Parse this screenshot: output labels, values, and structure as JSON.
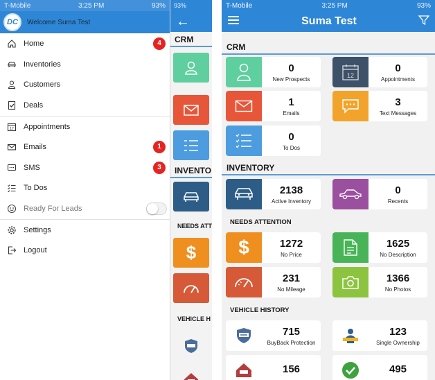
{
  "status_bar": {
    "carrier": "T-Mobile",
    "time": "3:25 PM",
    "battery": "93%"
  },
  "drawer": {
    "welcome": "Welcome Suma Test",
    "logo_text": "DC",
    "items": [
      {
        "label": "Home",
        "icon": "home-icon",
        "badge": "4"
      },
      {
        "label": "Inventories",
        "icon": "car-icon",
        "badge": ""
      },
      {
        "label": "Customers",
        "icon": "person-icon",
        "badge": ""
      },
      {
        "label": "Deals",
        "icon": "deals-icon",
        "badge": ""
      },
      {
        "label": "Appointments",
        "icon": "calendar-icon",
        "badge": ""
      },
      {
        "label": "Emails",
        "icon": "envelope-icon",
        "badge": "1"
      },
      {
        "label": "SMS",
        "icon": "chat-icon",
        "badge": "3"
      },
      {
        "label": "To Dos",
        "icon": "list-icon",
        "badge": ""
      },
      {
        "label": "Ready For Leads",
        "icon": "leads-icon",
        "badge": ""
      },
      {
        "label": "Settings",
        "icon": "gear-icon",
        "badge": ""
      },
      {
        "label": "Logout",
        "icon": "logout-icon",
        "badge": ""
      }
    ]
  },
  "mid": {
    "sections": [
      "CRM",
      "INVENTO",
      "NEEDS ATT",
      "VEHICLE H"
    ]
  },
  "dashboard": {
    "title": "Suma Test",
    "sections": {
      "crm": "CRM",
      "inventory": "INVENTORY",
      "needs_attention": "NEEDS ATTENTION",
      "vehicle_history": "VEHICLE HISTORY"
    },
    "crm_cards": [
      {
        "value": "0",
        "label": "New Prospects",
        "color": "#5fcf9f",
        "icon": "person-icon"
      },
      {
        "value": "0",
        "label": "Appointments",
        "color": "#3d5169",
        "icon": "calendar-icon"
      },
      {
        "value": "1",
        "label": "Emails",
        "color": "#e8563a",
        "icon": "envelope-icon"
      },
      {
        "value": "3",
        "label": "Text Messages",
        "color": "#f1a32b",
        "icon": "chat-icon"
      },
      {
        "value": "0",
        "label": "To Dos",
        "color": "#4d9ce0",
        "icon": "list-icon"
      }
    ],
    "inventory_cards": [
      {
        "value": "2138",
        "label": "Active Inventory",
        "color": "#2d5d86",
        "icon": "car-icon"
      },
      {
        "value": "0",
        "label": "Recents",
        "color": "#9b4f9f",
        "icon": "car-side-icon"
      }
    ],
    "attention_cards": [
      {
        "value": "1272",
        "label": "No Price",
        "color": "#ef8f1f",
        "icon": "dollar-icon"
      },
      {
        "value": "1625",
        "label": "No Description",
        "color": "#49b457",
        "icon": "document-icon"
      },
      {
        "value": "231",
        "label": "No Mileage",
        "color": "#d65a38",
        "icon": "gauge-icon"
      },
      {
        "value": "1366",
        "label": "No Photos",
        "color": "#8cc43f",
        "icon": "camera-icon"
      }
    ],
    "history_cards": [
      {
        "value": "715",
        "label": "BuyBack Protection",
        "icon": "buyback-icon"
      },
      {
        "value": "123",
        "label": "Single Ownership",
        "icon": "ownership-icon"
      },
      {
        "value": "156",
        "label": "",
        "icon": "house-icon"
      },
      {
        "value": "495",
        "label": "",
        "icon": "check-icon"
      }
    ]
  }
}
